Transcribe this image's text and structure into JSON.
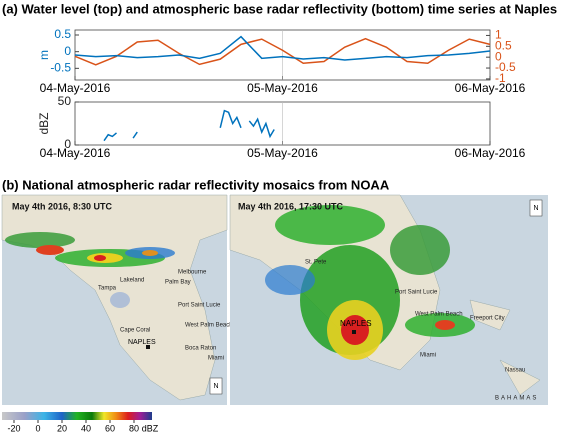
{
  "panel_a_title": "(a) Water level (top) and atmospheric base radar reflectivity  (bottom) time series at Naples",
  "chart_data": [
    {
      "type": "line",
      "ylabel": "m",
      "x": [
        0,
        0.1,
        0.2,
        0.3,
        0.4,
        0.5,
        0.6,
        0.7,
        0.8,
        0.9,
        1.0,
        1.1,
        1.2,
        1.3,
        1.4,
        1.5,
        1.6,
        1.7,
        1.8,
        1.9,
        2.0
      ],
      "xlim": [
        0,
        2
      ],
      "xticks": [
        {
          "value": 0,
          "label": "04-May-2016"
        },
        {
          "value": 1,
          "label": "05-May-2016"
        },
        {
          "value": 2,
          "label": "06-May-2016"
        }
      ],
      "ylim": [
        -0.85,
        0.65
      ],
      "yticks": [
        -0.5,
        0,
        0.5
      ],
      "y2lim": [
        -1.05,
        1.25
      ],
      "y2ticks": [
        -1,
        -0.5,
        0,
        0.5,
        1
      ],
      "series": [
        {
          "color": "#0072bd",
          "values": [
            -0.1,
            -0.15,
            -0.12,
            -0.18,
            -0.15,
            -0.1,
            -0.2,
            -0.05,
            0.45,
            -0.2,
            -0.15,
            -0.22,
            -0.18,
            -0.25,
            -0.2,
            -0.15,
            -0.18,
            -0.12,
            -0.1,
            -0.05,
            0.02
          ]
        },
        {
          "color": "#d95319",
          "axis": "y2",
          "values": [
            0.04,
            -0.35,
            0.04,
            0.7,
            0.78,
            0.18,
            -0.33,
            -0.09,
            0.59,
            0.83,
            0.32,
            -0.28,
            -0.2,
            0.46,
            0.85,
            0.46,
            -0.2,
            -0.28,
            0.32,
            0.83,
            0.59
          ]
        }
      ]
    },
    {
      "type": "line",
      "ylabel": "dBZ",
      "x": [
        0.14,
        0.16,
        0.18,
        0.2,
        0.22,
        0.28,
        0.3,
        0.32,
        0.7,
        0.72,
        0.74,
        0.76,
        0.78,
        0.8,
        0.82,
        0.84,
        0.86,
        0.88,
        0.9,
        0.92,
        0.94,
        0.96
      ],
      "xlim": [
        0,
        2
      ],
      "xticks": [
        {
          "value": 0,
          "label": "04-May-2016"
        },
        {
          "value": 1,
          "label": "05-May-2016"
        },
        {
          "value": 2,
          "label": "06-May-2016"
        }
      ],
      "ylim": [
        0,
        50
      ],
      "yticks": [
        0,
        50
      ],
      "series": [
        {
          "color": "#0072bd",
          "values": [
            5,
            12,
            10,
            14,
            null,
            8,
            15,
            null,
            20,
            40,
            38,
            25,
            32,
            20,
            null,
            28,
            22,
            30,
            15,
            25,
            10,
            18
          ]
        }
      ]
    }
  ],
  "panel_b": {
    "title": "(b) National atmospheric radar reflectivity mosaics from NOAA",
    "maps": [
      {
        "timestamp": "May 4th 2016, 8:30 UTC",
        "labels": [
          "Tampa",
          "Lakeland",
          "Palm Bay",
          "Melbourne",
          "Port Saint Lucie",
          "West Palm Beach",
          "Cape Coral",
          "NAPLES",
          "Boca Raton",
          "Miami"
        ],
        "compass": "N"
      },
      {
        "timestamp": "May 4th 2016, 17:30 UTC",
        "labels": [
          "St. Pete",
          "Port Saint Lucie",
          "West Palm Beach",
          "Freeport City",
          "NAPLES",
          "Miami",
          "Nassau",
          "BAHAMAS"
        ],
        "compass": "N"
      }
    ],
    "colorbar": {
      "lim": [
        -30,
        95
      ],
      "ticks": [
        -20,
        0,
        20,
        40,
        60,
        80
      ],
      "unit": "dBZ"
    }
  }
}
